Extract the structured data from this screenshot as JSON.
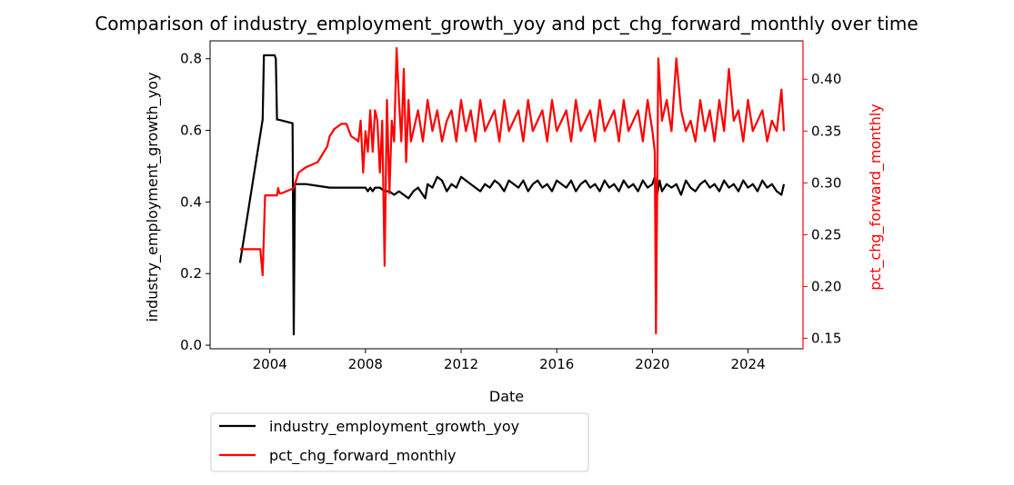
{
  "chart_data": {
    "type": "line",
    "title": "Comparison of industry_employment_growth_yoy and pct_chg_forward_monthly over time",
    "xlabel": "Date",
    "ylabel_left": "industry_employment_growth_yoy",
    "ylabel_right": "pct_chg_forward_monthly",
    "x_ticks": [
      "2004",
      "2008",
      "2012",
      "2016",
      "2020",
      "2024"
    ],
    "y_left_ticks": [
      "0.0",
      "0.2",
      "0.4",
      "0.6",
      "0.8"
    ],
    "y_right_ticks": [
      "0.15",
      "0.20",
      "0.25",
      "0.30",
      "0.35",
      "0.40"
    ],
    "xlim": [
      2001.5,
      2026.3
    ],
    "ylim_left": [
      -0.01,
      0.85
    ],
    "ylim_right": [
      0.14,
      0.437
    ],
    "legend_placement": "below-left",
    "grid": false,
    "series": [
      {
        "name": "industry_employment_growth_yoy",
        "axis": "left",
        "color": "#000000",
        "x": [
          2002.75,
          2003.7,
          2003.75,
          2003.8,
          2004.2,
          2004.25,
          2004.3,
          2004.35,
          2004.95,
          2005.0,
          2005.05,
          2005.3,
          2005.5,
          2006.0,
          2006.5,
          2007.0,
          2007.5,
          2008.0,
          2008.1,
          2008.2,
          2008.3,
          2008.4,
          2008.6,
          2008.8,
          2009.0,
          2009.2,
          2009.4,
          2009.6,
          2009.8,
          2010.0,
          2010.2,
          2010.4,
          2010.5,
          2010.6,
          2010.8,
          2011.0,
          2011.2,
          2011.4,
          2011.6,
          2011.8,
          2012.0,
          2012.2,
          2012.4,
          2012.6,
          2012.8,
          2013.0,
          2013.2,
          2013.4,
          2013.6,
          2013.8,
          2014.0,
          2014.2,
          2014.4,
          2014.6,
          2014.8,
          2015.0,
          2015.2,
          2015.4,
          2015.6,
          2015.8,
          2016.0,
          2016.2,
          2016.4,
          2016.6,
          2016.8,
          2017.0,
          2017.2,
          2017.4,
          2017.6,
          2017.8,
          2018.0,
          2018.2,
          2018.4,
          2018.6,
          2018.8,
          2019.0,
          2019.2,
          2019.4,
          2019.6,
          2019.8,
          2020.0,
          2020.1,
          2020.2,
          2020.3,
          2020.4,
          2020.6,
          2020.8,
          2021.0,
          2021.2,
          2021.4,
          2021.6,
          2021.8,
          2022.0,
          2022.2,
          2022.4,
          2022.6,
          2022.8,
          2023.0,
          2023.2,
          2023.4,
          2023.6,
          2023.8,
          2024.0,
          2024.2,
          2024.4,
          2024.6,
          2024.8,
          2025.0,
          2025.2,
          2025.4,
          2025.5
        ],
        "values": [
          0.23,
          0.63,
          0.81,
          0.81,
          0.81,
          0.8,
          0.63,
          0.63,
          0.62,
          0.03,
          0.45,
          0.45,
          0.45,
          0.445,
          0.44,
          0.44,
          0.44,
          0.44,
          0.43,
          0.44,
          0.43,
          0.44,
          0.44,
          0.43,
          0.43,
          0.42,
          0.43,
          0.42,
          0.41,
          0.43,
          0.44,
          0.42,
          0.41,
          0.45,
          0.44,
          0.47,
          0.46,
          0.43,
          0.45,
          0.44,
          0.47,
          0.46,
          0.45,
          0.44,
          0.43,
          0.45,
          0.44,
          0.46,
          0.45,
          0.43,
          0.46,
          0.45,
          0.44,
          0.46,
          0.43,
          0.45,
          0.46,
          0.44,
          0.45,
          0.43,
          0.46,
          0.45,
          0.44,
          0.46,
          0.43,
          0.45,
          0.46,
          0.44,
          0.45,
          0.43,
          0.46,
          0.44,
          0.45,
          0.43,
          0.46,
          0.44,
          0.45,
          0.43,
          0.46,
          0.44,
          0.45,
          0.47,
          0.42,
          0.46,
          0.43,
          0.45,
          0.44,
          0.45,
          0.42,
          0.46,
          0.44,
          0.43,
          0.45,
          0.46,
          0.44,
          0.45,
          0.43,
          0.46,
          0.44,
          0.45,
          0.43,
          0.46,
          0.44,
          0.45,
          0.43,
          0.46,
          0.44,
          0.45,
          0.43,
          0.42,
          0.45
        ]
      },
      {
        "name": "pct_chg_forward_monthly",
        "axis": "right",
        "color": "#ff0000",
        "x": [
          2002.75,
          2003.6,
          2003.7,
          2003.8,
          2004.3,
          2004.35,
          2004.4,
          2004.5,
          2004.8,
          2005.0,
          2005.2,
          2005.5,
          2006.0,
          2006.4,
          2006.5,
          2006.7,
          2007.0,
          2007.1,
          2007.2,
          2007.4,
          2007.6,
          2007.7,
          2007.8,
          2007.9,
          2008.0,
          2008.1,
          2008.2,
          2008.3,
          2008.4,
          2008.5,
          2008.6,
          2008.7,
          2008.8,
          2008.9,
          2009.0,
          2009.1,
          2009.2,
          2009.3,
          2009.4,
          2009.5,
          2009.6,
          2009.7,
          2009.8,
          2009.9,
          2010.0,
          2010.2,
          2010.4,
          2010.6,
          2010.8,
          2011.0,
          2011.2,
          2011.4,
          2011.6,
          2011.8,
          2012.0,
          2012.2,
          2012.4,
          2012.6,
          2012.8,
          2013.0,
          2013.2,
          2013.4,
          2013.6,
          2013.8,
          2014.0,
          2014.2,
          2014.4,
          2014.6,
          2014.8,
          2015.0,
          2015.2,
          2015.4,
          2015.6,
          2015.8,
          2016.0,
          2016.2,
          2016.4,
          2016.6,
          2016.8,
          2017.0,
          2017.2,
          2017.4,
          2017.6,
          2017.8,
          2018.0,
          2018.2,
          2018.4,
          2018.6,
          2018.8,
          2019.0,
          2019.2,
          2019.4,
          2019.6,
          2019.8,
          2020.0,
          2020.1,
          2020.15,
          2020.25,
          2020.4,
          2020.6,
          2020.8,
          2021.0,
          2021.2,
          2021.4,
          2021.6,
          2021.8,
          2022.0,
          2022.2,
          2022.4,
          2022.6,
          2022.8,
          2023.0,
          2023.2,
          2023.4,
          2023.6,
          2023.8,
          2024.0,
          2024.2,
          2024.4,
          2024.6,
          2024.8,
          2025.0,
          2025.2,
          2025.4,
          2025.5
        ],
        "values": [
          0.236,
          0.236,
          0.211,
          0.288,
          0.288,
          0.295,
          0.29,
          0.29,
          0.293,
          0.295,
          0.31,
          0.315,
          0.32,
          0.335,
          0.345,
          0.352,
          0.357,
          0.357,
          0.357,
          0.345,
          0.342,
          0.34,
          0.36,
          0.31,
          0.35,
          0.33,
          0.37,
          0.33,
          0.37,
          0.36,
          0.31,
          0.36,
          0.22,
          0.38,
          0.29,
          0.36,
          0.34,
          0.43,
          0.38,
          0.34,
          0.41,
          0.32,
          0.38,
          0.34,
          0.35,
          0.37,
          0.34,
          0.38,
          0.35,
          0.37,
          0.34,
          0.36,
          0.37,
          0.34,
          0.38,
          0.35,
          0.37,
          0.34,
          0.38,
          0.35,
          0.36,
          0.37,
          0.34,
          0.38,
          0.35,
          0.36,
          0.37,
          0.34,
          0.38,
          0.35,
          0.36,
          0.37,
          0.34,
          0.38,
          0.35,
          0.36,
          0.37,
          0.34,
          0.38,
          0.35,
          0.36,
          0.37,
          0.34,
          0.38,
          0.35,
          0.36,
          0.37,
          0.34,
          0.38,
          0.35,
          0.36,
          0.37,
          0.34,
          0.38,
          0.35,
          0.33,
          0.155,
          0.42,
          0.36,
          0.38,
          0.35,
          0.42,
          0.37,
          0.35,
          0.36,
          0.34,
          0.38,
          0.35,
          0.37,
          0.34,
          0.38,
          0.35,
          0.41,
          0.36,
          0.37,
          0.34,
          0.38,
          0.35,
          0.36,
          0.37,
          0.34,
          0.36,
          0.35,
          0.39,
          0.35
        ]
      }
    ]
  }
}
